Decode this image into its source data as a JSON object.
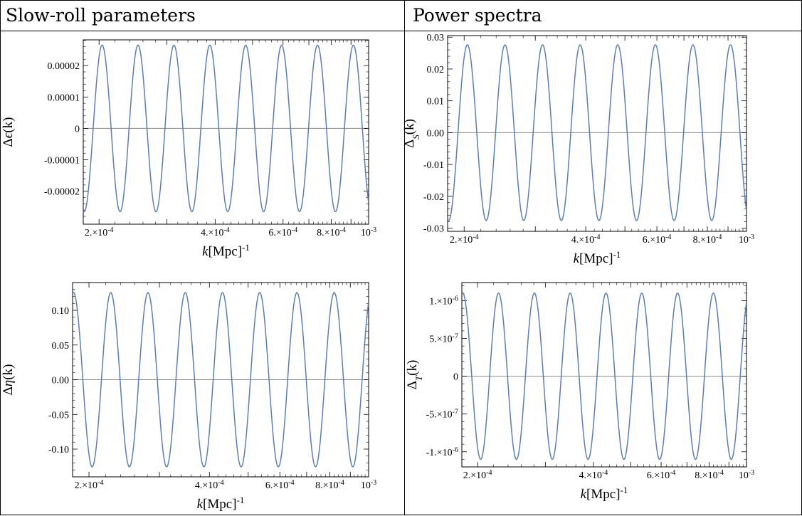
{
  "table": {
    "headers": [
      "Slow-roll parameters",
      "Power spectra"
    ]
  },
  "chart_data": [
    {
      "type": "line",
      "panel": "top-left",
      "title": "",
      "xlabel": "k[Mpc]^-1",
      "ylabel": "Δϵ(k)",
      "x_scale": "log",
      "xlim": [
        0.000182,
        0.001
      ],
      "ylim": [
        -3.05e-05,
        2.82e-05
      ],
      "yticks": [
        "0.00002",
        "0.00001",
        "0",
        "-0.00001",
        "-0.00002"
      ],
      "yticks_values": [
        2e-05,
        1e-05,
        0,
        -1e-05,
        -2e-05
      ],
      "xticks": [
        "2.×10^-4",
        "4.×10^-4",
        "6.×10^-4",
        "8.×10^-4",
        "10^-3"
      ],
      "xticks_values": [
        0.0002,
        0.0004,
        0.0006,
        0.0008,
        0.001
      ],
      "series": [
        {
          "amplitude": 2.65e-05,
          "oscillations_across_range": 7.95,
          "phase": 4.55,
          "color": "#5b7fb5"
        }
      ],
      "zero_line": true
    },
    {
      "type": "line",
      "panel": "top-right",
      "title": "",
      "xlabel": "k[Mpc]^-1",
      "ylabel": "ΔS(k)",
      "x_scale": "log",
      "xlim": [
        0.000182,
        0.001
      ],
      "ylim": [
        -0.031,
        0.0305
      ],
      "yticks": [
        "0.03",
        "0.02",
        "0.01",
        "0.00",
        "-0.01",
        "-0.02",
        "-0.03"
      ],
      "yticks_values": [
        0.03,
        0.02,
        0.01,
        0,
        -0.01,
        -0.02,
        -0.03
      ],
      "xticks": [
        "2.×10^-4",
        "4.×10^-4",
        "6.×10^-4",
        "8.×10^-4",
        "10^-3"
      ],
      "xticks_values": [
        0.0002,
        0.0004,
        0.0006,
        0.0008,
        0.001
      ],
      "series": [
        {
          "amplitude": 0.0276,
          "oscillations_across_range": 7.95,
          "phase": 4.55,
          "color": "#5b7fb5"
        }
      ],
      "zero_line": true
    },
    {
      "type": "line",
      "panel": "bottom-left",
      "title": "",
      "xlabel": "k[Mpc]^-1",
      "ylabel": "Δη(k)",
      "x_scale": "log",
      "xlim": [
        0.000182,
        0.001
      ],
      "ylim": [
        -0.14,
        0.14
      ],
      "yticks": [
        "0.10",
        "0.05",
        "0.00",
        "-0.05",
        "-0.10"
      ],
      "yticks_values": [
        0.1,
        0.05,
        0,
        -0.05,
        -0.1
      ],
      "xticks": [
        "2.×10^-4",
        "4.×10^-4",
        "6.×10^-4",
        "8.×10^-4",
        "10^-3"
      ],
      "xticks_values": [
        0.0002,
        0.0004,
        0.0006,
        0.0008,
        0.001
      ],
      "series": [
        {
          "amplitude": 0.1255,
          "oscillations_across_range": 7.95,
          "phase": 1.41,
          "color": "#5b7fb5"
        }
      ],
      "zero_line": true
    },
    {
      "type": "line",
      "panel": "bottom-right",
      "title": "",
      "xlabel": "k[Mpc]^-1",
      "ylabel": "ΔT(k)",
      "x_scale": "log",
      "xlim": [
        0.000182,
        0.001
      ],
      "ylim": [
        -1.2e-06,
        1.24e-06
      ],
      "yticks": [
        "1.×10^-6",
        "5.×10^-7",
        "0",
        "-5.×10^-7",
        "-1.×10^-6"
      ],
      "yticks_values": [
        1e-06,
        5e-07,
        0,
        -5e-07,
        -1e-06
      ],
      "xticks": [
        "2.×10^-4",
        "4.×10^-4",
        "6.×10^-4",
        "8.×10^-4",
        "10^-3"
      ],
      "xticks_values": [
        0.0002,
        0.0004,
        0.0006,
        0.0008,
        0.001
      ],
      "series": [
        {
          "amplitude": 1.1e-06,
          "oscillations_across_range": 7.95,
          "phase": 1.41,
          "color": "#5b7fb5"
        }
      ],
      "zero_line": true
    }
  ]
}
